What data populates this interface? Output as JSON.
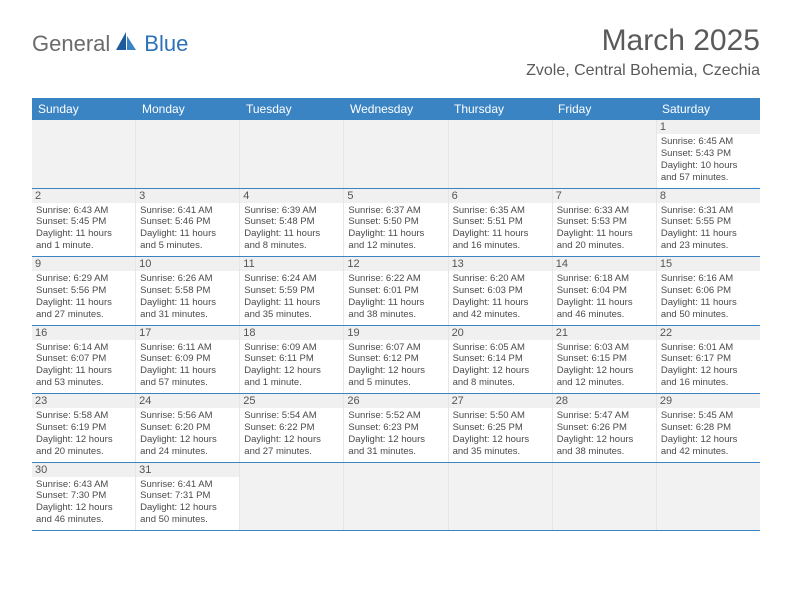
{
  "logo": {
    "textGray": "General",
    "textBlue": "Blue"
  },
  "title": "March 2025",
  "location": "Zvole, Central Bohemia, Czechia",
  "colors": {
    "headerBlue": "#3b84c4",
    "logoBlue": "#2d71b8",
    "textGray": "#5a5a5a",
    "cellBorder": "#e6e6e6",
    "emptyBg": "#f2f2f2"
  },
  "dayHeaders": [
    "Sunday",
    "Monday",
    "Tuesday",
    "Wednesday",
    "Thursday",
    "Friday",
    "Saturday"
  ],
  "weeks": [
    [
      {
        "empty": true
      },
      {
        "empty": true
      },
      {
        "empty": true
      },
      {
        "empty": true
      },
      {
        "empty": true
      },
      {
        "empty": true
      },
      {
        "num": "1",
        "sunrise": "Sunrise: 6:45 AM",
        "sunset": "Sunset: 5:43 PM",
        "daylight1": "Daylight: 10 hours",
        "daylight2": "and 57 minutes."
      }
    ],
    [
      {
        "num": "2",
        "sunrise": "Sunrise: 6:43 AM",
        "sunset": "Sunset: 5:45 PM",
        "daylight1": "Daylight: 11 hours",
        "daylight2": "and 1 minute."
      },
      {
        "num": "3",
        "sunrise": "Sunrise: 6:41 AM",
        "sunset": "Sunset: 5:46 PM",
        "daylight1": "Daylight: 11 hours",
        "daylight2": "and 5 minutes."
      },
      {
        "num": "4",
        "sunrise": "Sunrise: 6:39 AM",
        "sunset": "Sunset: 5:48 PM",
        "daylight1": "Daylight: 11 hours",
        "daylight2": "and 8 minutes."
      },
      {
        "num": "5",
        "sunrise": "Sunrise: 6:37 AM",
        "sunset": "Sunset: 5:50 PM",
        "daylight1": "Daylight: 11 hours",
        "daylight2": "and 12 minutes."
      },
      {
        "num": "6",
        "sunrise": "Sunrise: 6:35 AM",
        "sunset": "Sunset: 5:51 PM",
        "daylight1": "Daylight: 11 hours",
        "daylight2": "and 16 minutes."
      },
      {
        "num": "7",
        "sunrise": "Sunrise: 6:33 AM",
        "sunset": "Sunset: 5:53 PM",
        "daylight1": "Daylight: 11 hours",
        "daylight2": "and 20 minutes."
      },
      {
        "num": "8",
        "sunrise": "Sunrise: 6:31 AM",
        "sunset": "Sunset: 5:55 PM",
        "daylight1": "Daylight: 11 hours",
        "daylight2": "and 23 minutes."
      }
    ],
    [
      {
        "num": "9",
        "sunrise": "Sunrise: 6:29 AM",
        "sunset": "Sunset: 5:56 PM",
        "daylight1": "Daylight: 11 hours",
        "daylight2": "and 27 minutes."
      },
      {
        "num": "10",
        "sunrise": "Sunrise: 6:26 AM",
        "sunset": "Sunset: 5:58 PM",
        "daylight1": "Daylight: 11 hours",
        "daylight2": "and 31 minutes."
      },
      {
        "num": "11",
        "sunrise": "Sunrise: 6:24 AM",
        "sunset": "Sunset: 5:59 PM",
        "daylight1": "Daylight: 11 hours",
        "daylight2": "and 35 minutes."
      },
      {
        "num": "12",
        "sunrise": "Sunrise: 6:22 AM",
        "sunset": "Sunset: 6:01 PM",
        "daylight1": "Daylight: 11 hours",
        "daylight2": "and 38 minutes."
      },
      {
        "num": "13",
        "sunrise": "Sunrise: 6:20 AM",
        "sunset": "Sunset: 6:03 PM",
        "daylight1": "Daylight: 11 hours",
        "daylight2": "and 42 minutes."
      },
      {
        "num": "14",
        "sunrise": "Sunrise: 6:18 AM",
        "sunset": "Sunset: 6:04 PM",
        "daylight1": "Daylight: 11 hours",
        "daylight2": "and 46 minutes."
      },
      {
        "num": "15",
        "sunrise": "Sunrise: 6:16 AM",
        "sunset": "Sunset: 6:06 PM",
        "daylight1": "Daylight: 11 hours",
        "daylight2": "and 50 minutes."
      }
    ],
    [
      {
        "num": "16",
        "sunrise": "Sunrise: 6:14 AM",
        "sunset": "Sunset: 6:07 PM",
        "daylight1": "Daylight: 11 hours",
        "daylight2": "and 53 minutes."
      },
      {
        "num": "17",
        "sunrise": "Sunrise: 6:11 AM",
        "sunset": "Sunset: 6:09 PM",
        "daylight1": "Daylight: 11 hours",
        "daylight2": "and 57 minutes."
      },
      {
        "num": "18",
        "sunrise": "Sunrise: 6:09 AM",
        "sunset": "Sunset: 6:11 PM",
        "daylight1": "Daylight: 12 hours",
        "daylight2": "and 1 minute."
      },
      {
        "num": "19",
        "sunrise": "Sunrise: 6:07 AM",
        "sunset": "Sunset: 6:12 PM",
        "daylight1": "Daylight: 12 hours",
        "daylight2": "and 5 minutes."
      },
      {
        "num": "20",
        "sunrise": "Sunrise: 6:05 AM",
        "sunset": "Sunset: 6:14 PM",
        "daylight1": "Daylight: 12 hours",
        "daylight2": "and 8 minutes."
      },
      {
        "num": "21",
        "sunrise": "Sunrise: 6:03 AM",
        "sunset": "Sunset: 6:15 PM",
        "daylight1": "Daylight: 12 hours",
        "daylight2": "and 12 minutes."
      },
      {
        "num": "22",
        "sunrise": "Sunrise: 6:01 AM",
        "sunset": "Sunset: 6:17 PM",
        "daylight1": "Daylight: 12 hours",
        "daylight2": "and 16 minutes."
      }
    ],
    [
      {
        "num": "23",
        "sunrise": "Sunrise: 5:58 AM",
        "sunset": "Sunset: 6:19 PM",
        "daylight1": "Daylight: 12 hours",
        "daylight2": "and 20 minutes."
      },
      {
        "num": "24",
        "sunrise": "Sunrise: 5:56 AM",
        "sunset": "Sunset: 6:20 PM",
        "daylight1": "Daylight: 12 hours",
        "daylight2": "and 24 minutes."
      },
      {
        "num": "25",
        "sunrise": "Sunrise: 5:54 AM",
        "sunset": "Sunset: 6:22 PM",
        "daylight1": "Daylight: 12 hours",
        "daylight2": "and 27 minutes."
      },
      {
        "num": "26",
        "sunrise": "Sunrise: 5:52 AM",
        "sunset": "Sunset: 6:23 PM",
        "daylight1": "Daylight: 12 hours",
        "daylight2": "and 31 minutes."
      },
      {
        "num": "27",
        "sunrise": "Sunrise: 5:50 AM",
        "sunset": "Sunset: 6:25 PM",
        "daylight1": "Daylight: 12 hours",
        "daylight2": "and 35 minutes."
      },
      {
        "num": "28",
        "sunrise": "Sunrise: 5:47 AM",
        "sunset": "Sunset: 6:26 PM",
        "daylight1": "Daylight: 12 hours",
        "daylight2": "and 38 minutes."
      },
      {
        "num": "29",
        "sunrise": "Sunrise: 5:45 AM",
        "sunset": "Sunset: 6:28 PM",
        "daylight1": "Daylight: 12 hours",
        "daylight2": "and 42 minutes."
      }
    ],
    [
      {
        "num": "30",
        "sunrise": "Sunrise: 6:43 AM",
        "sunset": "Sunset: 7:30 PM",
        "daylight1": "Daylight: 12 hours",
        "daylight2": "and 46 minutes."
      },
      {
        "num": "31",
        "sunrise": "Sunrise: 6:41 AM",
        "sunset": "Sunset: 7:31 PM",
        "daylight1": "Daylight: 12 hours",
        "daylight2": "and 50 minutes."
      },
      {
        "empty": true
      },
      {
        "empty": true
      },
      {
        "empty": true
      },
      {
        "empty": true
      },
      {
        "empty": true
      }
    ]
  ]
}
